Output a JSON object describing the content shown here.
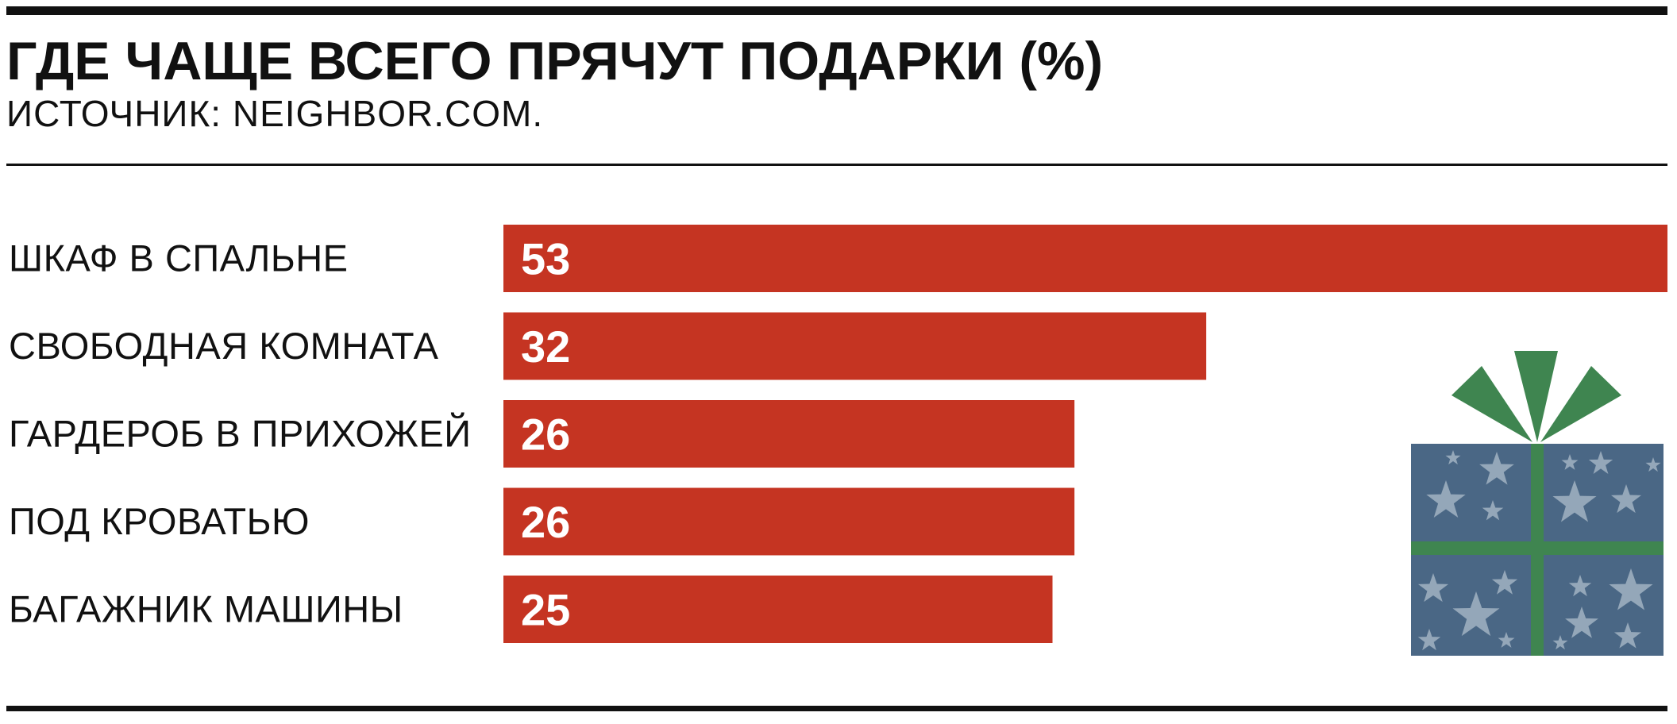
{
  "chart_data": {
    "type": "bar",
    "orientation": "horizontal",
    "title": "ГДЕ ЧАЩЕ ВСЕГО ПРЯЧУТ ПОДАРКИ (%)",
    "subtitle": "ИСТОЧНИК: NEIGHBOR.COM.",
    "categories": [
      "ШКАФ В СПАЛЬНЕ",
      "СВОБОДНАЯ КОМНАТА",
      "ГАРДЕРОБ В ПРИХОЖЕЙ",
      "ПОД КРОВАТЬЮ",
      "БАГАЖНИК МАШИНЫ"
    ],
    "values": [
      53,
      32,
      26,
      26,
      25
    ],
    "color": "#c53422"
  }
}
